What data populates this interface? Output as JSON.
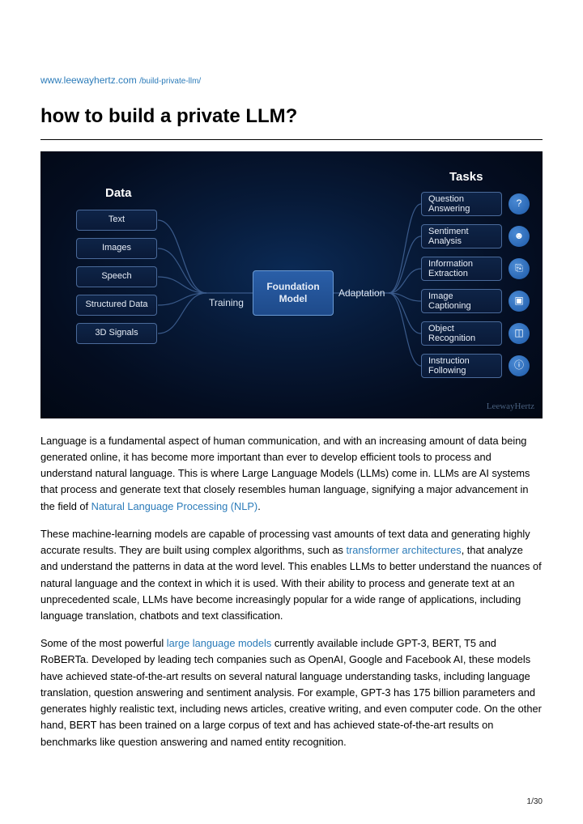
{
  "breadcrumb": {
    "domain": "www.leewayhertz.com",
    "path": "/build-private-llm/"
  },
  "title": "how to build a private LLM?",
  "diagram": {
    "background_colors": {
      "center": "#0b2a55",
      "edge": "#020814"
    },
    "box_border_color": "#4a6a9a",
    "line_color": "#3a5a8a",
    "headers": {
      "data": "Data",
      "tasks": "Tasks"
    },
    "data_items": [
      "Text",
      "Images",
      "Speech",
      "Structured Data",
      "3D Signals"
    ],
    "center": {
      "line1": "Foundation",
      "line2": "Model"
    },
    "edge_labels": {
      "training": "Training",
      "adaptation": "Adaptation"
    },
    "tasks": [
      {
        "label": "Question\nAnswering",
        "glyph": "?"
      },
      {
        "label": "Sentiment\nAnalysis",
        "glyph": "☻"
      },
      {
        "label": "Information\nExtraction",
        "glyph": "⎘"
      },
      {
        "label": "Image\nCaptioning",
        "glyph": "▣"
      },
      {
        "label": "Object\nRecognition",
        "glyph": "◫"
      },
      {
        "label": "Instruction\nFollowing",
        "glyph": "ⓘ"
      }
    ],
    "watermark": "LeewayHertz"
  },
  "paragraphs": {
    "p1_a": "Language is a fundamental aspect of human communication, and with an increasing amount of data being generated online, it has become more important than ever to develop efficient tools to process and understand natural language. This is where Large Language Models (LLMs) come in. LLMs are AI systems that process and generate text that closely resembles human language, signifying a major advancement in the field of ",
    "p1_link": "Natural Language Processing (NLP)",
    "p1_b": ".",
    "p2_a": "These machine-learning models are capable of processing vast amounts of text data and generating highly accurate results. They are built using complex algorithms, such as ",
    "p2_link": "transformer architectures",
    "p2_b": ", that analyze and understand the patterns in data at the word level. This enables LLMs to better understand the nuances of natural language and the context in which it is used. With their ability to process and generate text at an unprecedented scale, LLMs have become increasingly popular for a wide range of applications, including language translation, chatbots and text classification.",
    "p3_a": "Some of the most powerful ",
    "p3_link": "large language models",
    "p3_b": " currently available include GPT-3, BERT, T5 and RoBERTa. Developed by leading tech companies such as OpenAI, Google and Facebook AI, these models have achieved state-of-the-art results on several natural language understanding tasks, including language translation, question answering and sentiment analysis. For example, GPT-3 has 175 billion parameters and generates highly realistic text, including news articles, creative writing, and even computer code. On the other hand, BERT has been trained on a large corpus of text and has achieved state-of-the-art results on benchmarks like question answering and named entity recognition."
  },
  "pager": "1/30"
}
